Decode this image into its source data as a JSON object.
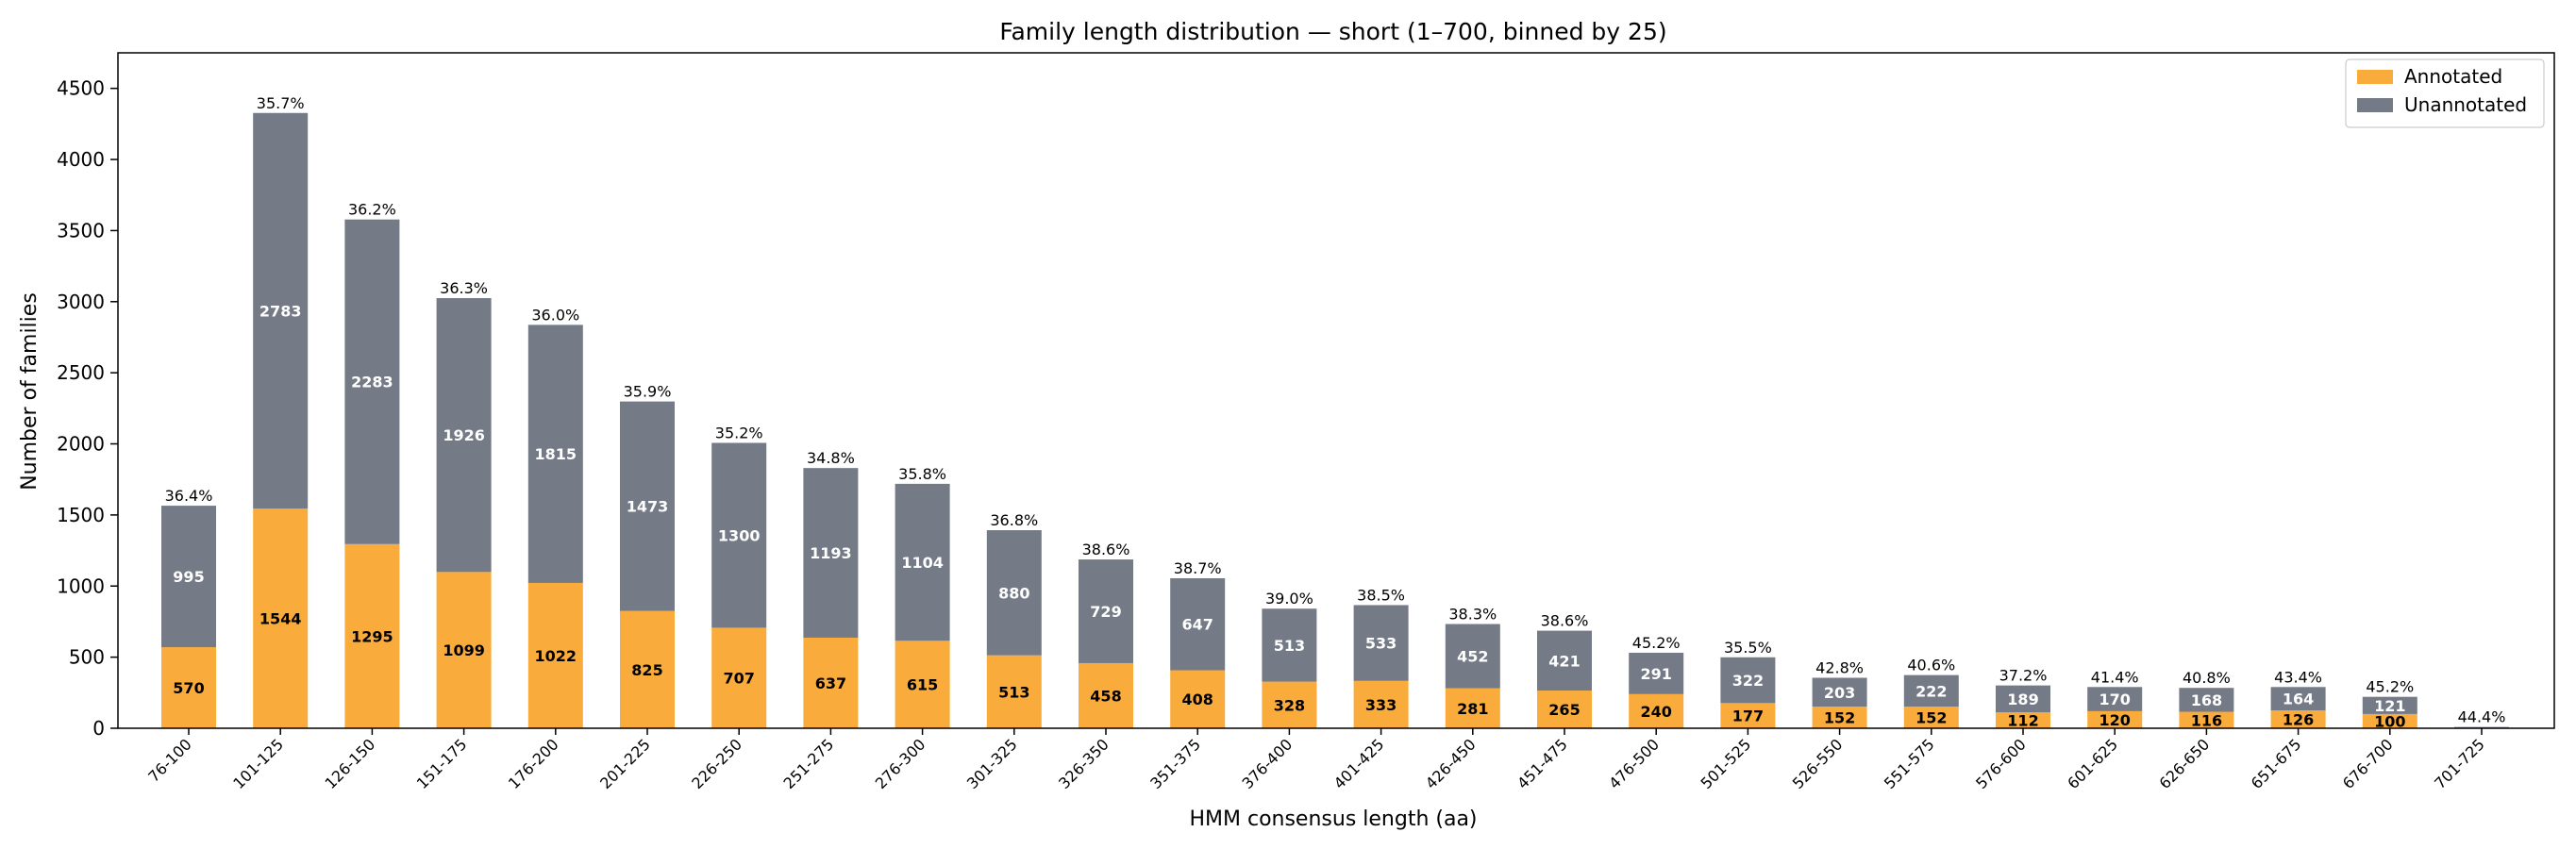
{
  "chart_data": {
    "type": "bar",
    "stacked": true,
    "title": "Family length distribution — short (1–700, binned by 25)",
    "xlabel": "HMM consensus length (aa)",
    "ylabel": "Number of families",
    "ylim": [
      0,
      4750
    ],
    "yticks": [
      0,
      500,
      1000,
      1500,
      2000,
      2500,
      3000,
      3500,
      4000,
      4500
    ],
    "legend_position": "top-right",
    "categories": [
      "76-100",
      "101-125",
      "126-150",
      "151-175",
      "176-200",
      "201-225",
      "226-250",
      "251-275",
      "276-300",
      "301-325",
      "326-350",
      "351-375",
      "376-400",
      "401-425",
      "426-450",
      "451-475",
      "476-500",
      "501-525",
      "526-550",
      "551-575",
      "576-600",
      "601-625",
      "626-650",
      "651-675",
      "676-700",
      "701-725"
    ],
    "series": [
      {
        "name": "Annotated",
        "color": "#f9ab3b",
        "label_color": "#000000",
        "values": [
          570,
          1544,
          1295,
          1099,
          1022,
          825,
          707,
          637,
          615,
          513,
          458,
          408,
          328,
          333,
          281,
          265,
          240,
          177,
          152,
          152,
          112,
          120,
          116,
          126,
          100,
          4
        ],
        "labels": [
          "570",
          "1544",
          "1295",
          "1099",
          "1022",
          "825",
          "707",
          "637",
          "615",
          "513",
          "458",
          "408",
          "328",
          "333",
          "281",
          "265",
          "240",
          "177",
          "152",
          "152",
          "112",
          "120",
          "116",
          "126",
          "100",
          ""
        ]
      },
      {
        "name": "Unannotated",
        "color": "#747a86",
        "label_color": "#ffffff",
        "values": [
          995,
          2783,
          2283,
          1926,
          1815,
          1473,
          1300,
          1193,
          1104,
          880,
          729,
          647,
          513,
          533,
          452,
          421,
          291,
          322,
          203,
          222,
          189,
          170,
          168,
          164,
          121,
          5
        ],
        "labels": [
          "995",
          "2783",
          "2283",
          "1926",
          "1815",
          "1473",
          "1300",
          "1193",
          "1104",
          "880",
          "729",
          "647",
          "513",
          "533",
          "452",
          "421",
          "291",
          "322",
          "203",
          "222",
          "189",
          "170",
          "168",
          "164",
          "121",
          ""
        ]
      }
    ],
    "percent_labels": [
      "36.4%",
      "35.7%",
      "36.2%",
      "36.3%",
      "36.0%",
      "35.9%",
      "35.2%",
      "34.8%",
      "35.8%",
      "36.8%",
      "38.6%",
      "38.7%",
      "39.0%",
      "38.5%",
      "38.3%",
      "38.6%",
      "45.2%",
      "35.5%",
      "42.8%",
      "40.6%",
      "37.2%",
      "41.4%",
      "40.8%",
      "43.4%",
      "45.2%",
      "44.4%"
    ]
  }
}
